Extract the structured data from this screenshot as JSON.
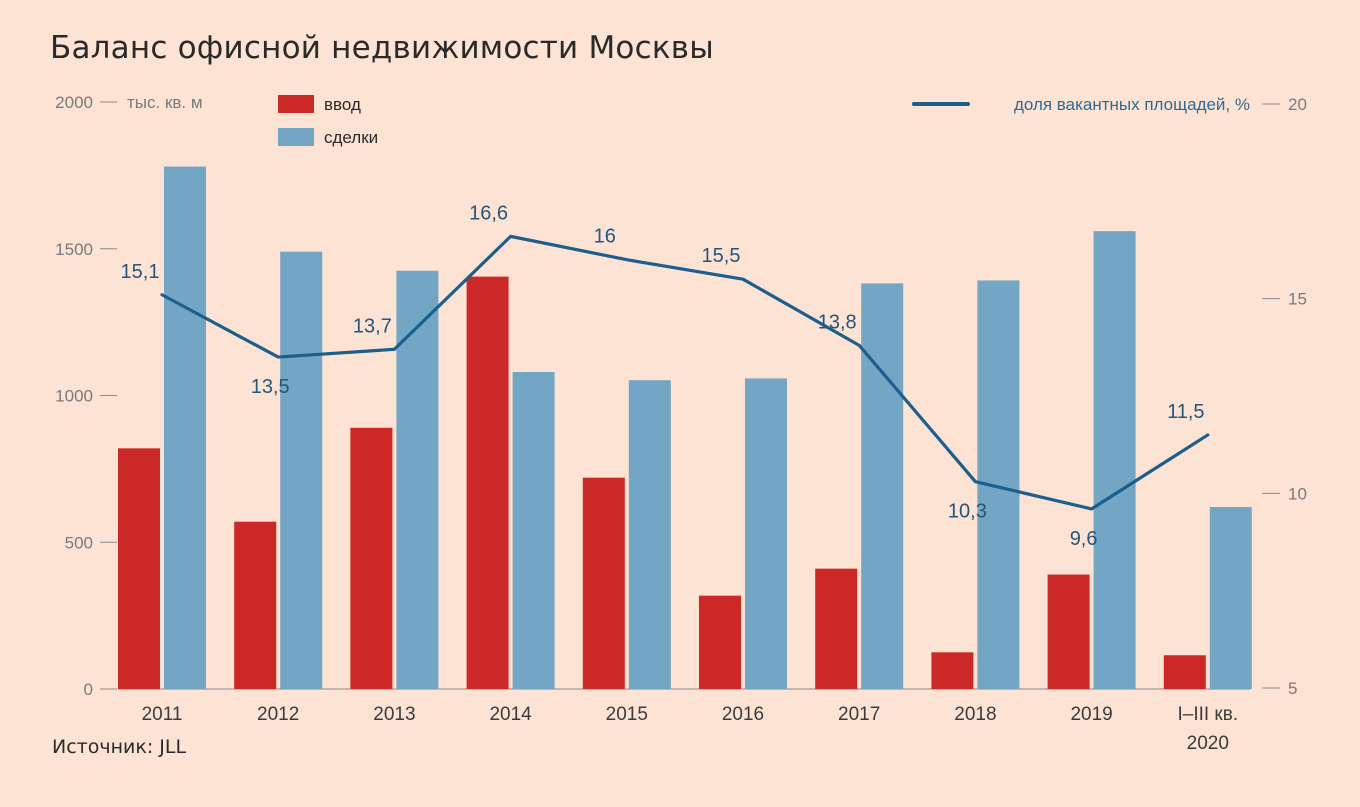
{
  "title": "Баланс офисной недвижимости Москвы",
  "source": "Источник: JLL",
  "colors": {
    "background": "#fde3d3",
    "vvod": "#cc2828",
    "sdelki": "#72a6c4",
    "line": "#1d5f8c",
    "axis": "#8a8a8a"
  },
  "chart_data": {
    "type": "bar",
    "categories": [
      "2011",
      "2012",
      "2013",
      "2014",
      "2015",
      "2016",
      "2017",
      "2018",
      "2019",
      "I–III кв.\n2020"
    ],
    "series": [
      {
        "name": "ввод",
        "axis": "left",
        "values": [
          820,
          570,
          890,
          1405,
          720,
          318,
          410,
          125,
          390,
          115
        ]
      },
      {
        "name": "сделки",
        "axis": "left",
        "values": [
          1780,
          1490,
          1425,
          1080,
          1052,
          1058,
          1382,
          1392,
          1560,
          620
        ]
      },
      {
        "name": "доля вакантных площадей, %",
        "type": "line",
        "axis": "right",
        "values": [
          15.1,
          13.5,
          13.7,
          16.6,
          16,
          15.5,
          13.8,
          10.3,
          9.6,
          11.5
        ]
      }
    ],
    "value_labels": [
      "15,1",
      "13,5",
      "13,7",
      "16,6",
      "16",
      "15,5",
      "13,8",
      "10,3",
      "9,6",
      "11,5"
    ],
    "left_axis": {
      "unit": "тыс. кв. м",
      "ylim": [
        0,
        2000
      ],
      "ticks": [
        "0",
        "500",
        "1000",
        "1500",
        "2000"
      ]
    },
    "right_axis": {
      "ylim": [
        5,
        20
      ],
      "ticks": [
        "5",
        "10",
        "15",
        "20"
      ]
    },
    "legend": [
      "ввод",
      "сделки",
      "доля вакантных площадей, %"
    ],
    "legend_position": "top"
  }
}
